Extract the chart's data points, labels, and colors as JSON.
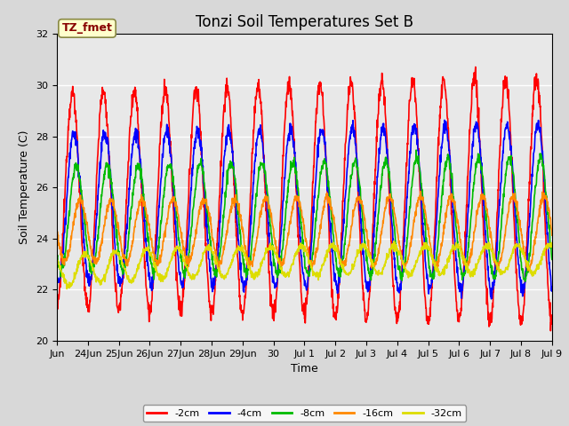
{
  "title": "Tonzi Soil Temperatures Set B",
  "xlabel": "Time",
  "ylabel": "Soil Temperature (C)",
  "ylim": [
    20,
    32
  ],
  "annotation": "TZ_fmet",
  "series_colors": {
    "-2cm": "#ff0000",
    "-4cm": "#0000ff",
    "-8cm": "#00bb00",
    "-16cm": "#ff8800",
    "-32cm": "#dddd00"
  },
  "series_order": [
    "-2cm",
    "-4cm",
    "-8cm",
    "-16cm",
    "-32cm"
  ],
  "xtick_labels": [
    "Jun",
    "24Jun",
    "25Jun",
    "26Jun",
    "27Jun",
    "28Jun",
    "29Jun",
    "30",
    "Jul 1",
    "Jul 2",
    "Jul 3",
    "Jul 4",
    "Jul 5",
    "Jul 6",
    "Jul 7",
    "Jul 8",
    "Jul 9"
  ],
  "xtick_positions": [
    0,
    1,
    2,
    3,
    4,
    5,
    6,
    7,
    8,
    9,
    10,
    11,
    12,
    13,
    14,
    15,
    16
  ],
  "background_color": "#d8d8d8",
  "plot_bg_color": "#e8e8e8",
  "title_fontsize": 12,
  "label_fontsize": 9,
  "tick_fontsize": 8,
  "linewidth": 1.2,
  "samples_per_day": 96,
  "n_days": 16,
  "seed": 12345
}
